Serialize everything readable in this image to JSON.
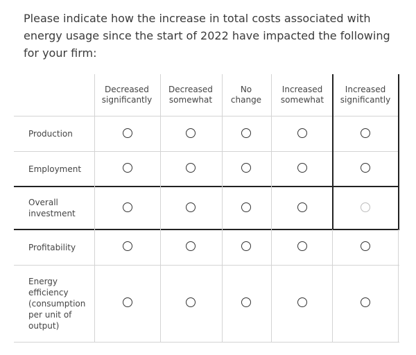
{
  "question": "Please indicate how the increase in total costs associated with energy usage since the start of 2022 have impacted the following for your firm:",
  "columns": [
    "Decreased significantly",
    "Decreased somewhat",
    "No change",
    "Increased somewhat",
    "Increased significantly"
  ],
  "rows": [
    "Production",
    "Employment",
    "Overall investment",
    "Profitability",
    "Energy efficiency (consumption per unit of output)"
  ],
  "selected": [
    null,
    null,
    null,
    null,
    null
  ]
}
